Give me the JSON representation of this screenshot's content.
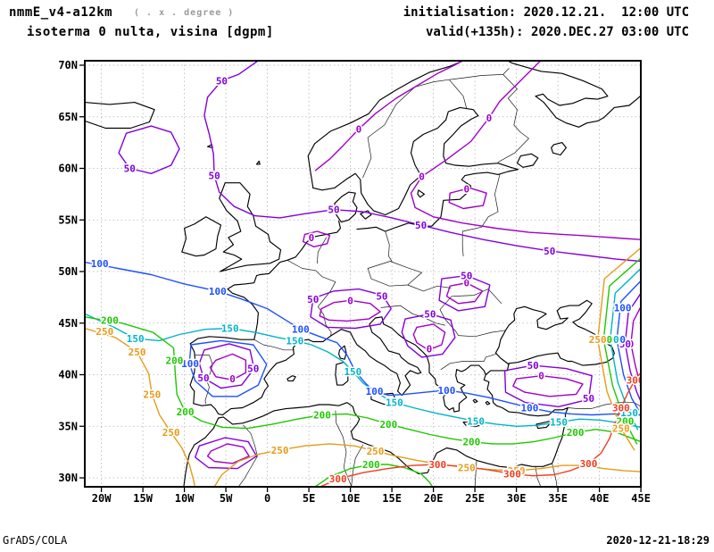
{
  "header": {
    "model": "nmmE_v4-a12km",
    "degree_note": "( . x . degree )",
    "field": "isoterma 0 nulta, visina [dgpm]",
    "init": "initialisation: 2020.12.21.  12:00 UTC",
    "valid": "valid(+135h): 2020.DEC.27 03:00 UTC"
  },
  "footer": {
    "left": "GrADS/COLA",
    "right": "2020-12-21-18:29"
  },
  "axes": {
    "lon_range": [
      -22,
      45
    ],
    "lat_range": [
      29.1,
      70.5
    ],
    "lon_ticks": [
      {
        "label": "20W",
        "value": -20
      },
      {
        "label": "15W",
        "value": -15
      },
      {
        "label": "10W",
        "value": -10
      },
      {
        "label": "5W",
        "value": -5
      },
      {
        "label": "0",
        "value": 0
      },
      {
        "label": "5E",
        "value": 5
      },
      {
        "label": "10E",
        "value": 10
      },
      {
        "label": "15E",
        "value": 15
      },
      {
        "label": "20E",
        "value": 20
      },
      {
        "label": "25E",
        "value": 25
      },
      {
        "label": "30E",
        "value": 30
      },
      {
        "label": "35E",
        "value": 35
      },
      {
        "label": "40E",
        "value": 40
      },
      {
        "label": "45E",
        "value": 45
      }
    ],
    "lat_ticks": [
      {
        "label": "70N",
        "value": 70
      },
      {
        "label": "65N",
        "value": 65
      },
      {
        "label": "60N",
        "value": 60
      },
      {
        "label": "55N",
        "value": 55
      },
      {
        "label": "50N",
        "value": 50
      },
      {
        "label": "45N",
        "value": 45
      },
      {
        "label": "40N",
        "value": 40
      },
      {
        "label": "35N",
        "value": 35
      },
      {
        "label": "30N",
        "value": 30
      }
    ]
  },
  "contours": {
    "unit": "dgpm",
    "levels": [
      {
        "value": 0,
        "color": "#a000c8"
      },
      {
        "value": 50,
        "color": "#8200dc"
      },
      {
        "value": 100,
        "color": "#1e50ff"
      },
      {
        "value": 150,
        "color": "#00b4c8"
      },
      {
        "value": 200,
        "color": "#1ec800"
      },
      {
        "value": 250,
        "color": "#e69b19"
      },
      {
        "value": 300,
        "color": "#f03c1e"
      }
    ]
  },
  "contour_labels": [
    {
      "v": 0,
      "lon": 26.7,
      "lat": 64.9
    },
    {
      "v": 0,
      "lon": 18.6,
      "lat": 59.2
    },
    {
      "v": 0,
      "lon": 24.0,
      "lat": 58.0
    },
    {
      "v": 0,
      "lon": 5.3,
      "lat": 53.3
    },
    {
      "v": 0,
      "lon": 10.0,
      "lat": 47.2
    },
    {
      "v": 0,
      "lon": -4.2,
      "lat": 39.6
    },
    {
      "v": 0,
      "lon": 24.0,
      "lat": 48.9
    },
    {
      "v": 0,
      "lon": 19.5,
      "lat": 42.5
    },
    {
      "v": 0,
      "lon": 33.0,
      "lat": 39.9
    },
    {
      "v": 0,
      "lon": 11.0,
      "lat": 63.8
    },
    {
      "v": 0,
      "lon": 43.8,
      "lat": 43.0
    },
    {
      "v": 50,
      "lon": -5.5,
      "lat": 68.5
    },
    {
      "v": 50,
      "lon": -16.6,
      "lat": 60.0
    },
    {
      "v": 50,
      "lon": -6.4,
      "lat": 59.3
    },
    {
      "v": 50,
      "lon": 8.0,
      "lat": 56.0
    },
    {
      "v": 50,
      "lon": 18.5,
      "lat": 54.5
    },
    {
      "v": 50,
      "lon": 34.0,
      "lat": 52.0
    },
    {
      "v": 50,
      "lon": 5.5,
      "lat": 47.3
    },
    {
      "v": 50,
      "lon": 13.8,
      "lat": 47.6
    },
    {
      "v": 50,
      "lon": -7.7,
      "lat": 39.7
    },
    {
      "v": 50,
      "lon": -1.7,
      "lat": 40.6
    },
    {
      "v": 50,
      "lon": 19.6,
      "lat": 45.9
    },
    {
      "v": 50,
      "lon": 32.0,
      "lat": 40.9
    },
    {
      "v": 50,
      "lon": 38.7,
      "lat": 37.7
    },
    {
      "v": 50,
      "lon": 43.1,
      "lat": 43.0
    },
    {
      "v": 50,
      "lon": 24.0,
      "lat": 49.6
    },
    {
      "v": 100,
      "lon": -20.2,
      "lat": 50.8
    },
    {
      "v": 100,
      "lon": -6.0,
      "lat": 48.1
    },
    {
      "v": 100,
      "lon": 4.0,
      "lat": 44.4
    },
    {
      "v": 100,
      "lon": 12.9,
      "lat": 38.4
    },
    {
      "v": 100,
      "lon": 21.6,
      "lat": 38.5
    },
    {
      "v": 100,
      "lon": 31.6,
      "lat": 36.8
    },
    {
      "v": 100,
      "lon": -9.3,
      "lat": 41.1
    },
    {
      "v": 100,
      "lon": 42.1,
      "lat": 43.4
    },
    {
      "v": 100,
      "lon": 42.8,
      "lat": 46.5
    },
    {
      "v": 150,
      "lon": -15.9,
      "lat": 43.5
    },
    {
      "v": 150,
      "lon": -4.5,
      "lat": 44.5
    },
    {
      "v": 150,
      "lon": 3.3,
      "lat": 43.3
    },
    {
      "v": 150,
      "lon": 10.3,
      "lat": 40.3
    },
    {
      "v": 150,
      "lon": 15.3,
      "lat": 37.3
    },
    {
      "v": 150,
      "lon": 25.1,
      "lat": 35.5
    },
    {
      "v": 150,
      "lon": 35.1,
      "lat": 35.4
    },
    {
      "v": 150,
      "lon": 41.3,
      "lat": 43.4
    },
    {
      "v": 150,
      "lon": 43.6,
      "lat": 36.3
    },
    {
      "v": 200,
      "lon": -19.0,
      "lat": 45.3
    },
    {
      "v": 200,
      "lon": -11.2,
      "lat": 41.4
    },
    {
      "v": 200,
      "lon": -9.9,
      "lat": 36.4
    },
    {
      "v": 200,
      "lon": 6.6,
      "lat": 36.1
    },
    {
      "v": 200,
      "lon": 14.6,
      "lat": 35.2
    },
    {
      "v": 200,
      "lon": 24.6,
      "lat": 33.5
    },
    {
      "v": 200,
      "lon": 37.1,
      "lat": 34.4
    },
    {
      "v": 200,
      "lon": 12.5,
      "lat": 31.3
    },
    {
      "v": 200,
      "lon": 40.5,
      "lat": 43.4
    },
    {
      "v": 200,
      "lon": 43.1,
      "lat": 35.5
    },
    {
      "v": 250,
      "lon": -19.6,
      "lat": 44.2
    },
    {
      "v": 250,
      "lon": -15.7,
      "lat": 42.2
    },
    {
      "v": 250,
      "lon": -13.9,
      "lat": 38.1
    },
    {
      "v": 250,
      "lon": -11.6,
      "lat": 34.4
    },
    {
      "v": 250,
      "lon": 1.5,
      "lat": 32.7
    },
    {
      "v": 250,
      "lon": 13.0,
      "lat": 32.6
    },
    {
      "v": 250,
      "lon": 24.0,
      "lat": 31.0
    },
    {
      "v": 250,
      "lon": 30.0,
      "lat": 30.7
    },
    {
      "v": 250,
      "lon": 39.8,
      "lat": 43.4
    },
    {
      "v": 250,
      "lon": 42.6,
      "lat": 34.8
    },
    {
      "v": 300,
      "lon": 8.5,
      "lat": 29.9
    },
    {
      "v": 300,
      "lon": 20.5,
      "lat": 31.3
    },
    {
      "v": 300,
      "lon": 29.5,
      "lat": 30.4
    },
    {
      "v": 300,
      "lon": 38.7,
      "lat": 31.4
    },
    {
      "v": 300,
      "lon": 42.6,
      "lat": 36.8
    },
    {
      "v": 300,
      "lon": 44.3,
      "lat": 39.5
    }
  ]
}
